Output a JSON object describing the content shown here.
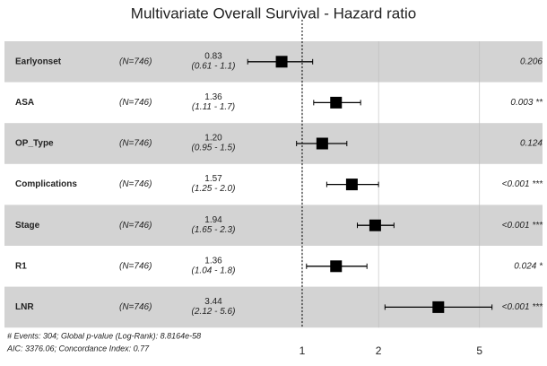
{
  "chart_data": {
    "type": "forest",
    "title": "Multivariate Overall Survival - Hazard ratio",
    "categories": [
      "Earlyonset",
      "ASA",
      "OP_Type",
      "Complications",
      "Stage",
      "R1",
      "LNR"
    ],
    "n_labels": [
      "(N=746)",
      "(N=746)",
      "(N=746)",
      "(N=746)",
      "(N=746)",
      "(N=746)",
      "(N=746)"
    ],
    "values": [
      0.83,
      1.36,
      1.2,
      1.57,
      1.94,
      1.36,
      3.44
    ],
    "value_labels": [
      "0.83",
      "1.36",
      "1.20",
      "1.57",
      "1.94",
      "1.36",
      "3.44"
    ],
    "ci_low": [
      0.61,
      1.11,
      0.95,
      1.25,
      1.65,
      1.04,
      2.12
    ],
    "ci_high": [
      1.1,
      1.7,
      1.5,
      2.0,
      2.3,
      1.8,
      5.6
    ],
    "ci_labels": [
      "(0.61 - 1.1)",
      "(1.11 - 1.7)",
      "(0.95 - 1.5)",
      "(1.25 - 2.0)",
      "(1.65 - 2.3)",
      "(1.04 - 1.8)",
      "(2.12 - 5.6)"
    ],
    "p_labels": [
      "0.206",
      "0.003 **",
      "0.124",
      "<0.001 ***",
      "<0.001 ***",
      "0.024 *",
      "<0.001 ***"
    ],
    "color": "#000000",
    "band_color": "#d3d3d3",
    "log_x": true,
    "xlim": [
      0.55,
      6.5
    ],
    "xticks": [
      1,
      2,
      5
    ],
    "grid": true,
    "reference_line": 1,
    "footnotes": [
      "# Events: 304; Global p-value (Log-Rank): 8.8164e-58",
      "AIC: 3376.06; Concordance Index: 0.77"
    ]
  }
}
